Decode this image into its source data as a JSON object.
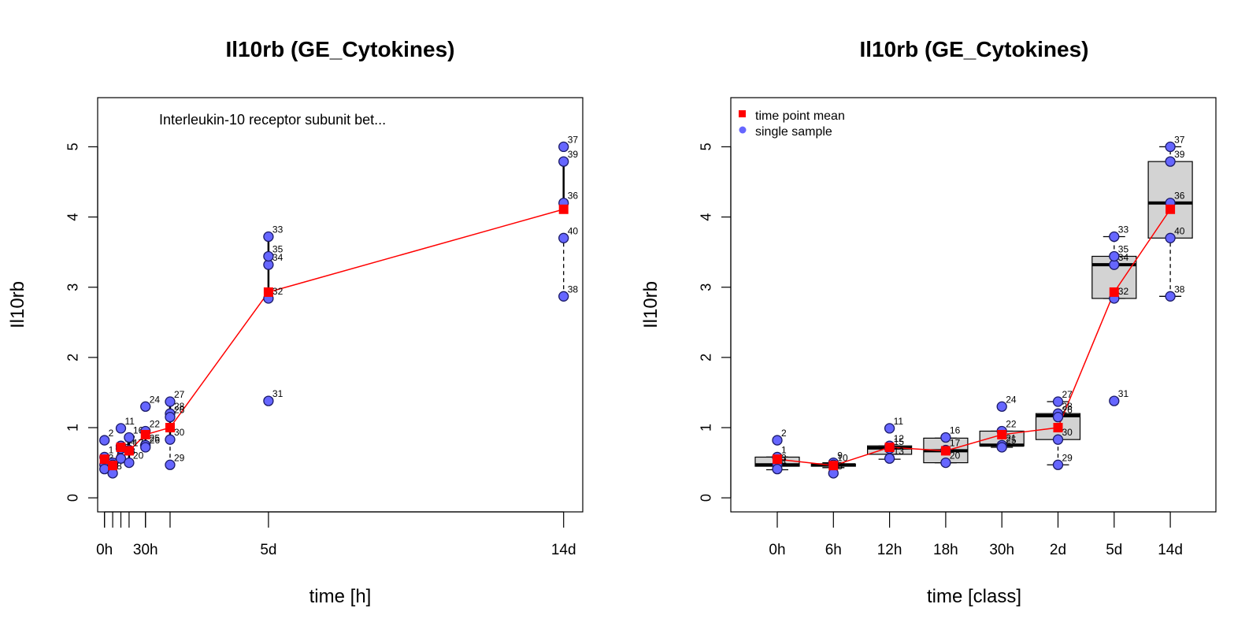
{
  "colors": {
    "mean": "#ff0000",
    "sample": "#6666ff",
    "box_fill": "#d3d3d3",
    "axis": "#000000"
  },
  "chart_data": [
    {
      "type": "scatter",
      "title": "Il10rb (GE_Cytokines)",
      "xlabel": "time [h]",
      "ylabel": "Il10rb",
      "annotation": "Interleukin-10 receptor subunit bet...",
      "xlim": [
        -5,
        350
      ],
      "ylim": [
        -0.2,
        5.7
      ],
      "yticks": [
        0,
        1,
        2,
        3,
        4,
        5
      ],
      "x_minor_ticks": [
        0,
        6,
        12,
        18,
        30,
        48
      ],
      "xtick_labels": [
        {
          "x": 0,
          "label": "0h"
        },
        {
          "x": 30,
          "label": "30h"
        },
        {
          "x": 120,
          "label": "5d"
        },
        {
          "x": 336,
          "label": "14d"
        }
      ],
      "grid": false,
      "time_points": [
        {
          "x": 0,
          "mean": 0.55,
          "whisker_solid": [
            0.47,
            0.6
          ],
          "whisker_dashed": [
            0.4,
            0.47
          ]
        },
        {
          "x": 6,
          "mean": 0.46,
          "whisker_solid": [
            0.4,
            0.5
          ],
          "whisker_dashed": [
            0.35,
            0.4
          ]
        },
        {
          "x": 12,
          "mean": 0.72,
          "whisker_solid": [
            0.62,
            0.75
          ],
          "whisker_dashed": [
            0.55,
            0.62
          ]
        },
        {
          "x": 18,
          "mean": 0.67,
          "whisker_solid": [
            0.5,
            0.85
          ],
          "whisker_dashed": [
            0.5,
            0.5
          ]
        },
        {
          "x": 30,
          "mean": 0.9,
          "whisker_solid": [
            0.73,
            0.95
          ],
          "whisker_dashed": [
            0.72,
            0.73
          ]
        },
        {
          "x": 48,
          "mean": 1.0,
          "whisker_solid": [
            0.83,
            1.37
          ],
          "whisker_dashed": [
            0.47,
            0.83
          ]
        },
        {
          "x": 120,
          "mean": 2.93,
          "whisker_solid": [
            2.84,
            3.72
          ],
          "whisker_dashed": [
            2.84,
            2.84
          ]
        },
        {
          "x": 336,
          "mean": 4.11,
          "whisker_solid": [
            4.2,
            4.79
          ],
          "whisker_dashed": [
            2.87,
            3.7
          ]
        }
      ],
      "samples": [
        {
          "id": "1",
          "x": 0,
          "y": 0.58
        },
        {
          "id": "2",
          "x": 0,
          "y": 0.82
        },
        {
          "id": "3",
          "x": 0,
          "y": 0.47
        },
        {
          "id": "4",
          "x": 0,
          "y": 0.41
        },
        {
          "id": "5",
          "x": 6,
          "y": 0.5
        },
        {
          "id": "6",
          "x": 6,
          "y": 0.47
        },
        {
          "id": "8",
          "x": 6,
          "y": 0.35
        },
        {
          "id": "11",
          "x": 12,
          "y": 0.99
        },
        {
          "id": "12",
          "x": 12,
          "y": 0.74
        },
        {
          "id": "13",
          "x": 12,
          "y": 0.56
        },
        {
          "id": "14",
          "x": 12,
          "y": 0.7
        },
        {
          "id": "16",
          "x": 18,
          "y": 0.86
        },
        {
          "id": "17",
          "x": 18,
          "y": 0.68
        },
        {
          "id": "20",
          "x": 18,
          "y": 0.5
        },
        {
          "id": "22",
          "x": 30,
          "y": 0.95
        },
        {
          "id": "24",
          "x": 30,
          "y": 1.3
        },
        {
          "id": "25",
          "x": 30,
          "y": 0.75
        },
        {
          "id": "26",
          "x": 30,
          "y": 0.72
        },
        {
          "id": "27",
          "x": 48,
          "y": 1.37
        },
        {
          "id": "28",
          "x": 48,
          "y": 1.2
        },
        {
          "id": "26",
          "x": 48,
          "y": 1.15
        },
        {
          "id": "29",
          "x": 48,
          "y": 0.47
        },
        {
          "id": "30",
          "x": 48,
          "y": 0.83
        },
        {
          "id": "31",
          "x": 120,
          "y": 1.38
        },
        {
          "id": "32",
          "x": 120,
          "y": 2.84
        },
        {
          "id": "33",
          "x": 120,
          "y": 3.72
        },
        {
          "id": "34",
          "x": 120,
          "y": 3.32
        },
        {
          "id": "35",
          "x": 120,
          "y": 3.44
        },
        {
          "id": "36",
          "x": 336,
          "y": 4.2
        },
        {
          "id": "37",
          "x": 336,
          "y": 5.0
        },
        {
          "id": "38",
          "x": 336,
          "y": 2.87
        },
        {
          "id": "39",
          "x": 336,
          "y": 4.79
        },
        {
          "id": "40",
          "x": 336,
          "y": 3.7
        }
      ]
    },
    {
      "type": "box",
      "title": "Il10rb (GE_Cytokines)",
      "xlabel": "time [class]",
      "ylabel": "Il10rb",
      "ylim": [
        -0.2,
        5.7
      ],
      "yticks": [
        0,
        1,
        2,
        3,
        4,
        5
      ],
      "categories": [
        "0h",
        "6h",
        "12h",
        "18h",
        "30h",
        "2d",
        "5d",
        "14d"
      ],
      "legend": {
        "position": "top-left",
        "entries": [
          "time point mean",
          "single sample"
        ]
      },
      "grid": false,
      "boxes": [
        {
          "min": 0.4,
          "q1": 0.45,
          "median": 0.47,
          "q3": 0.58,
          "max": 0.58,
          "mean": 0.55
        },
        {
          "min": 0.43,
          "q1": 0.45,
          "median": 0.47,
          "q3": 0.48,
          "max": 0.5,
          "mean": 0.46
        },
        {
          "min": 0.55,
          "q1": 0.62,
          "median": 0.71,
          "q3": 0.74,
          "max": 0.74,
          "mean": 0.72
        },
        {
          "min": 0.5,
          "q1": 0.5,
          "median": 0.67,
          "q3": 0.85,
          "max": 0.85,
          "mean": 0.67
        },
        {
          "min": 0.72,
          "q1": 0.74,
          "median": 0.75,
          "q3": 0.95,
          "max": 0.95,
          "mean": 0.9
        },
        {
          "min": 0.47,
          "q1": 0.83,
          "median": 1.17,
          "q3": 1.2,
          "max": 1.37,
          "mean": 1.0
        },
        {
          "min": 2.84,
          "q1": 2.84,
          "median": 3.32,
          "q3": 3.44,
          "max": 3.72,
          "mean": 2.93
        },
        {
          "min": 2.87,
          "q1": 3.7,
          "median": 4.2,
          "q3": 4.79,
          "max": 5.0,
          "mean": 4.11
        }
      ],
      "samples": [
        {
          "id": "1",
          "c": 0,
          "y": 0.58
        },
        {
          "id": "2",
          "c": 0,
          "y": 0.82
        },
        {
          "id": "3",
          "c": 0,
          "y": 0.47
        },
        {
          "id": "4",
          "c": 0,
          "y": 0.41
        },
        {
          "id": "9",
          "c": 1,
          "y": 0.5
        },
        {
          "id": "10",
          "c": 1,
          "y": 0.47
        },
        {
          "id": "8",
          "c": 1,
          "y": 0.35
        },
        {
          "id": "11",
          "c": 2,
          "y": 0.99
        },
        {
          "id": "12",
          "c": 2,
          "y": 0.74
        },
        {
          "id": "15",
          "c": 2,
          "y": 0.7
        },
        {
          "id": "13",
          "c": 2,
          "y": 0.56
        },
        {
          "id": "16",
          "c": 3,
          "y": 0.86
        },
        {
          "id": "17",
          "c": 3,
          "y": 0.68
        },
        {
          "id": "20",
          "c": 3,
          "y": 0.5
        },
        {
          "id": "22",
          "c": 4,
          "y": 0.95
        },
        {
          "id": "24",
          "c": 4,
          "y": 1.3
        },
        {
          "id": "21",
          "c": 4,
          "y": 0.75
        },
        {
          "id": "25",
          "c": 4,
          "y": 0.72
        },
        {
          "id": "27",
          "c": 5,
          "y": 1.37
        },
        {
          "id": "28",
          "c": 5,
          "y": 1.2
        },
        {
          "id": "26",
          "c": 5,
          "y": 1.15
        },
        {
          "id": "30",
          "c": 5,
          "y": 0.83
        },
        {
          "id": "29",
          "c": 5,
          "y": 0.47
        },
        {
          "id": "31",
          "c": 6,
          "y": 1.38
        },
        {
          "id": "32",
          "c": 6,
          "y": 2.84
        },
        {
          "id": "33",
          "c": 6,
          "y": 3.72
        },
        {
          "id": "34",
          "c": 6,
          "y": 3.32
        },
        {
          "id": "35",
          "c": 6,
          "y": 3.44
        },
        {
          "id": "36",
          "c": 7,
          "y": 4.2
        },
        {
          "id": "37",
          "c": 7,
          "y": 5.0
        },
        {
          "id": "38",
          "c": 7,
          "y": 2.87
        },
        {
          "id": "39",
          "c": 7,
          "y": 4.79
        },
        {
          "id": "40",
          "c": 7,
          "y": 3.7
        }
      ]
    }
  ]
}
